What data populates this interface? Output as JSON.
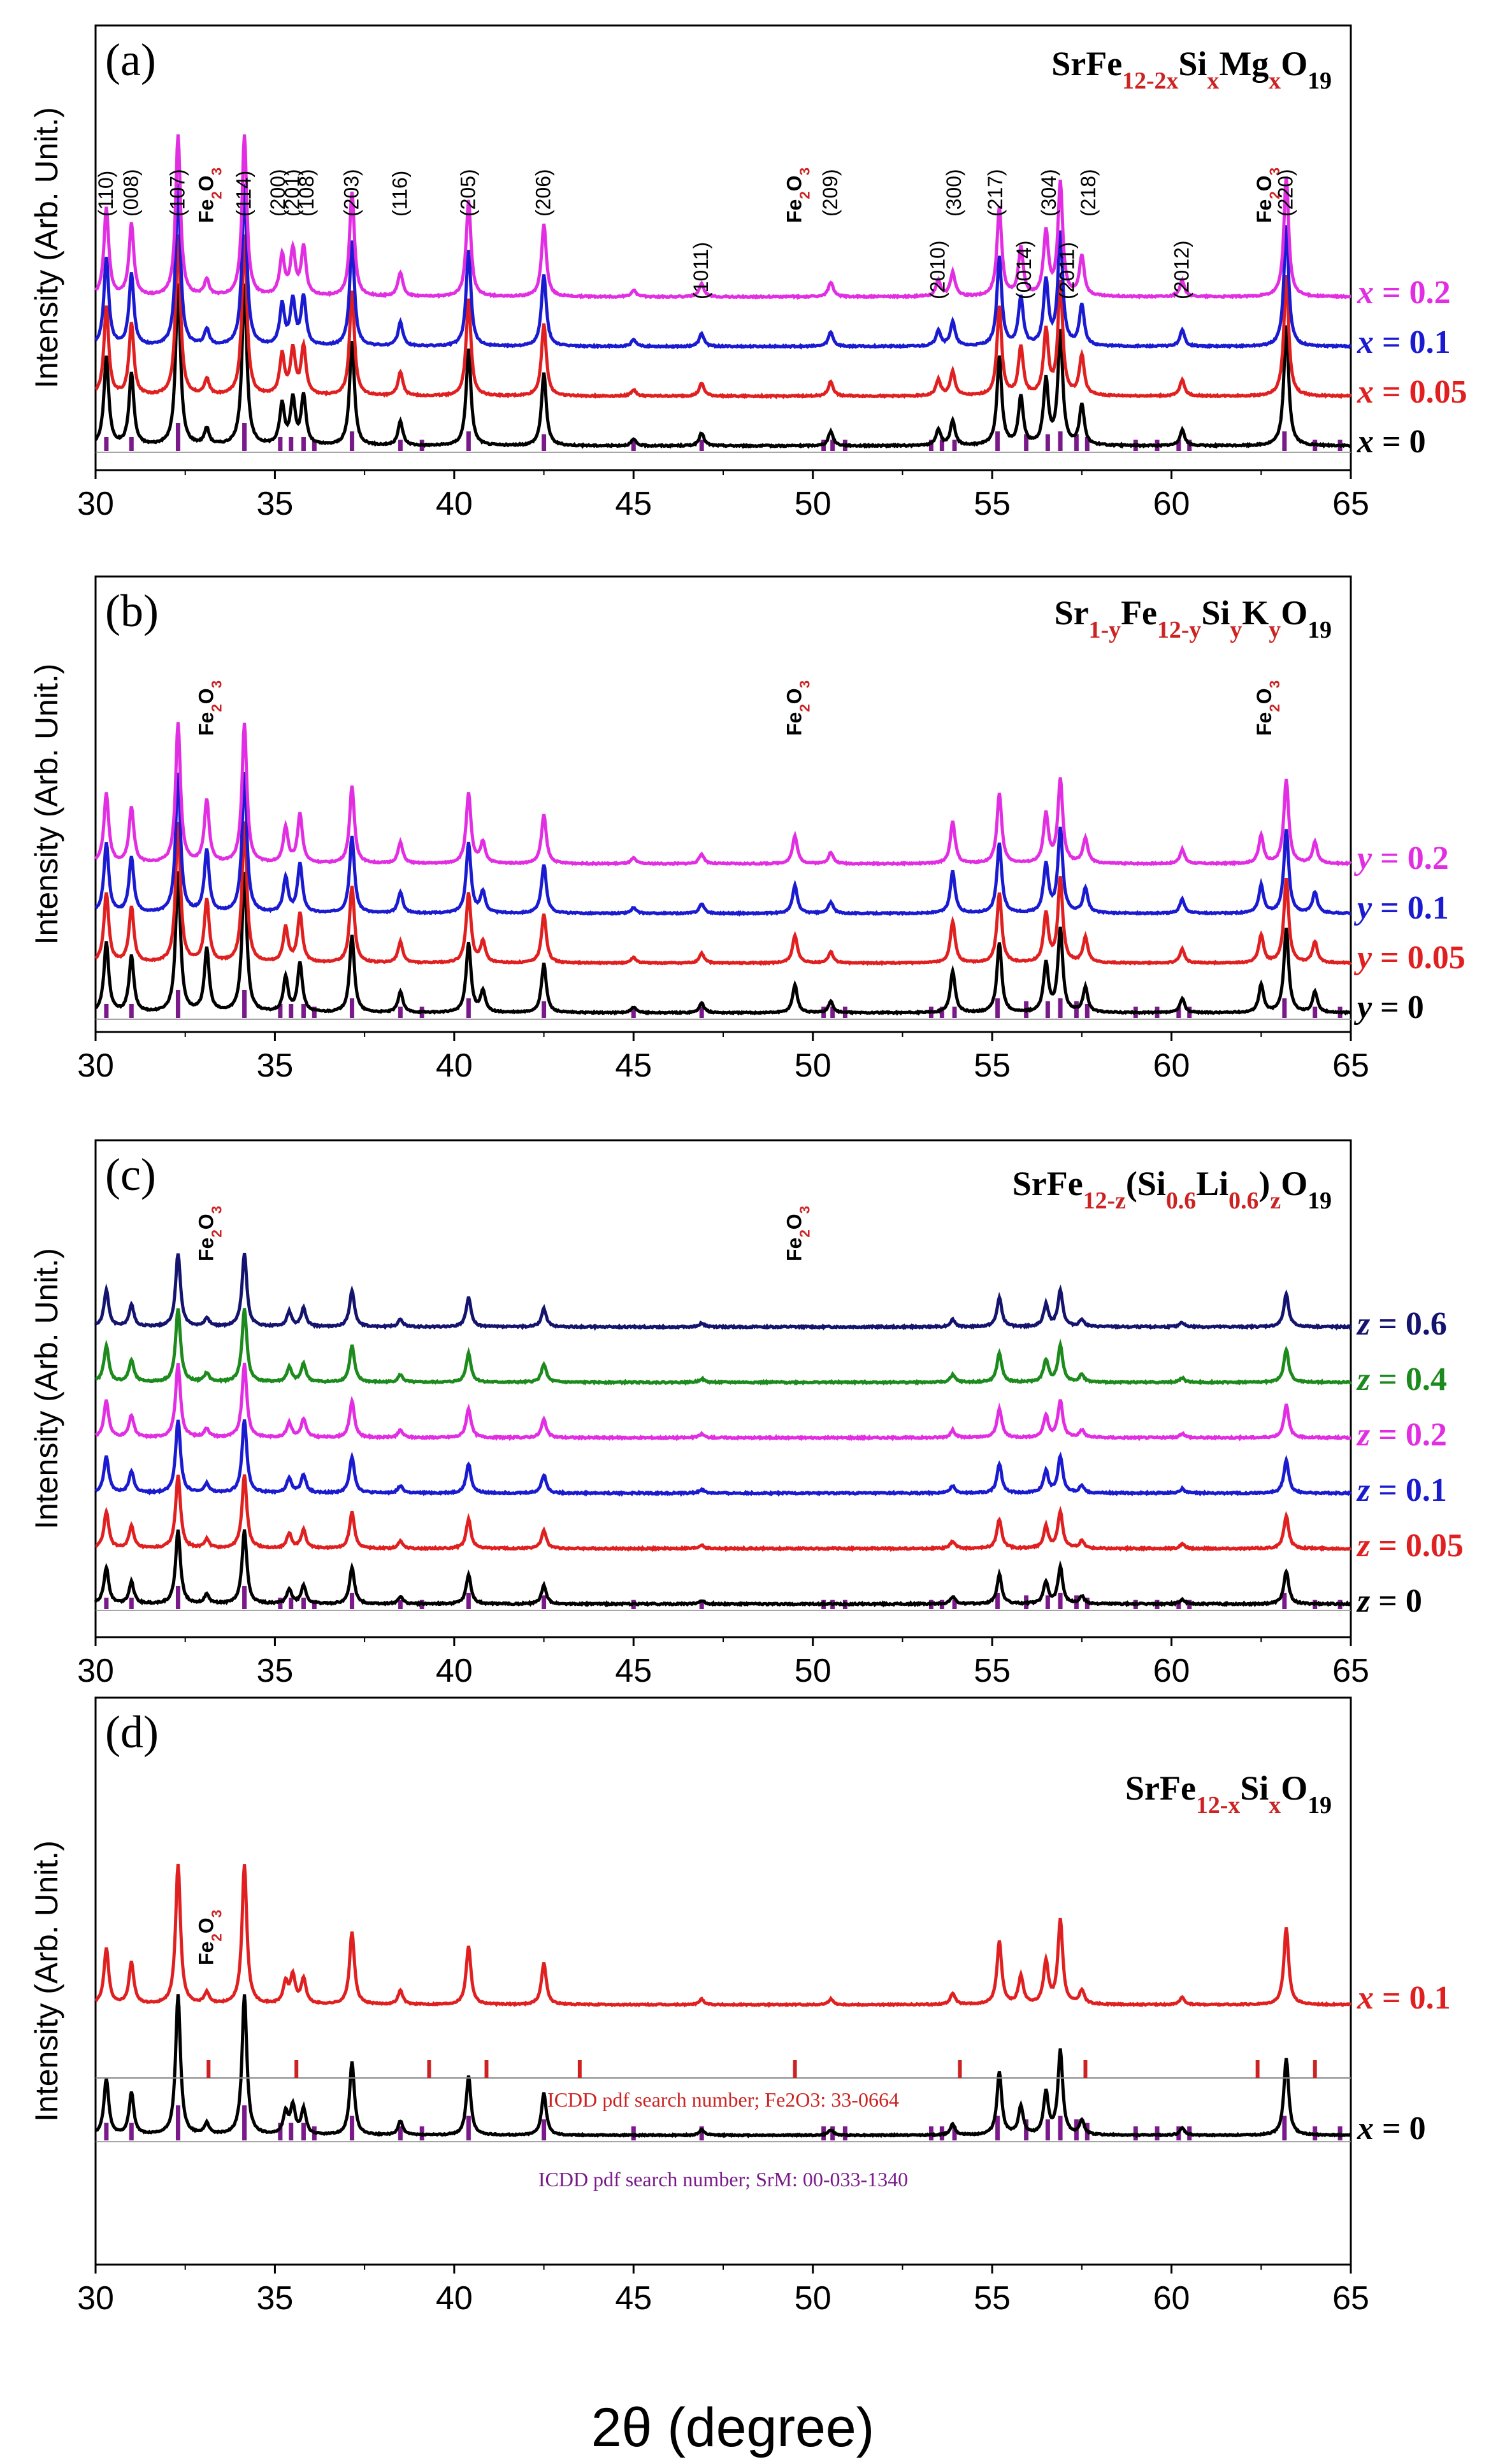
{
  "figure": {
    "xlabel": "2θ (degree)",
    "xlim": [
      30,
      65
    ],
    "xticks": [
      30,
      35,
      40,
      45,
      50,
      55,
      60,
      65
    ]
  },
  "colors": {
    "black": "#000000",
    "red": "#e02020",
    "blue": "#1a1ad0",
    "magenta": "#e22ee2",
    "navy": "#14146e",
    "green": "#1c8a1c",
    "purple": "#7a1a8a",
    "fe2o3": "#cc2222"
  },
  "chart_data": [
    {
      "panel": "a",
      "type": "line",
      "label": "(a)",
      "title": "SrFe12-2xSixMgxO19",
      "ylabel": "Intensity (Arb. Unit.)",
      "xlim": [
        30,
        65
      ],
      "series": [
        {
          "name": "x = 0",
          "var": "x",
          "val": "0",
          "color": "black"
        },
        {
          "name": "x = 0.05",
          "var": "x",
          "val": "0.05",
          "color": "red"
        },
        {
          "name": "x = 0.1",
          "var": "x",
          "val": "0.1",
          "color": "blue"
        },
        {
          "name": "x = 0.2",
          "var": "x",
          "val": "0.2",
          "color": "magenta"
        }
      ],
      "peaks": [
        {
          "x": 30.3,
          "h": 0.55
        },
        {
          "x": 31.0,
          "h": 0.45
        },
        {
          "x": 32.3,
          "h": 1.0
        },
        {
          "x": 33.1,
          "h": 0.1
        },
        {
          "x": 34.15,
          "h": 1.0
        },
        {
          "x": 35.2,
          "h": 0.25
        },
        {
          "x": 35.5,
          "h": 0.28
        },
        {
          "x": 35.8,
          "h": 0.3
        },
        {
          "x": 37.15,
          "h": 0.65
        },
        {
          "x": 38.5,
          "h": 0.15
        },
        {
          "x": 40.4,
          "h": 0.6
        },
        {
          "x": 42.5,
          "h": 0.45
        },
        {
          "x": 45.0,
          "h": 0.04
        },
        {
          "x": 46.9,
          "h": 0.08
        },
        {
          "x": 50.5,
          "h": 0.09
        },
        {
          "x": 53.5,
          "h": 0.1
        },
        {
          "x": 53.9,
          "h": 0.15
        },
        {
          "x": 55.2,
          "h": 0.55
        },
        {
          "x": 55.8,
          "h": 0.3
        },
        {
          "x": 56.5,
          "h": 0.4
        },
        {
          "x": 56.9,
          "h": 0.7
        },
        {
          "x": 57.5,
          "h": 0.25
        },
        {
          "x": 60.3,
          "h": 0.1
        },
        {
          "x": 63.2,
          "h": 0.75
        }
      ],
      "miller": [
        {
          "x": 30.3,
          "t": "(110)"
        },
        {
          "x": 31.0,
          "t": "(008)"
        },
        {
          "x": 32.3,
          "t": "(107)"
        },
        {
          "x": 34.15,
          "t": "(114)"
        },
        {
          "x": 35.1,
          "t": "(200)"
        },
        {
          "x": 35.5,
          "t": "(201)"
        },
        {
          "x": 35.9,
          "t": "(108)"
        },
        {
          "x": 37.15,
          "t": "(203)"
        },
        {
          "x": 38.5,
          "t": "(116)"
        },
        {
          "x": 40.4,
          "t": "(205)"
        },
        {
          "x": 42.5,
          "t": "(206)"
        },
        {
          "x": 46.9,
          "t": "(1011)"
        },
        {
          "x": 50.5,
          "t": "(209)"
        },
        {
          "x": 53.5,
          "t": "(2010)"
        },
        {
          "x": 53.95,
          "t": "(300)"
        },
        {
          "x": 55.1,
          "t": "(217)"
        },
        {
          "x": 55.9,
          "t": "(0014)"
        },
        {
          "x": 56.6,
          "t": "(304)"
        },
        {
          "x": 57.1,
          "t": "(2011)"
        },
        {
          "x": 57.7,
          "t": "(218)"
        },
        {
          "x": 60.3,
          "t": "(2012)"
        },
        {
          "x": 63.2,
          "t": "(220)"
        }
      ],
      "fe2o3": [
        {
          "x": 33.1
        },
        {
          "x": 49.5
        },
        {
          "x": 62.6
        }
      ]
    },
    {
      "panel": "b",
      "type": "line",
      "label": "(b)",
      "title": "Sr1-yFe12-ySiyKyO19",
      "ylabel": "Intensity (Arb. Unit.)",
      "xlim": [
        30,
        65
      ],
      "series": [
        {
          "name": "y = 0",
          "var": "y",
          "val": "0",
          "color": "black"
        },
        {
          "name": "y = 0.05",
          "var": "y",
          "val": "0.05",
          "color": "red"
        },
        {
          "name": "y = 0.1",
          "var": "y",
          "val": "0.1",
          "color": "blue"
        },
        {
          "name": "y = 0.2",
          "var": "y",
          "val": "0.2",
          "color": "magenta"
        }
      ],
      "peaks": [
        {
          "x": 30.3,
          "h": 0.5
        },
        {
          "x": 31.0,
          "h": 0.4
        },
        {
          "x": 32.3,
          "h": 1.0
        },
        {
          "x": 33.1,
          "h": 0.45
        },
        {
          "x": 34.15,
          "h": 1.0
        },
        {
          "x": 35.3,
          "h": 0.25
        },
        {
          "x": 35.7,
          "h": 0.35
        },
        {
          "x": 37.15,
          "h": 0.55
        },
        {
          "x": 38.5,
          "h": 0.15
        },
        {
          "x": 40.4,
          "h": 0.5
        },
        {
          "x": 40.8,
          "h": 0.15
        },
        {
          "x": 42.5,
          "h": 0.35
        },
        {
          "x": 45.0,
          "h": 0.04
        },
        {
          "x": 46.9,
          "h": 0.07
        },
        {
          "x": 49.5,
          "h": 0.2
        },
        {
          "x": 50.5,
          "h": 0.08
        },
        {
          "x": 53.9,
          "h": 0.3
        },
        {
          "x": 55.2,
          "h": 0.5
        },
        {
          "x": 56.5,
          "h": 0.35
        },
        {
          "x": 56.9,
          "h": 0.6
        },
        {
          "x": 57.6,
          "h": 0.18
        },
        {
          "x": 60.3,
          "h": 0.1
        },
        {
          "x": 62.5,
          "h": 0.2
        },
        {
          "x": 63.2,
          "h": 0.6
        },
        {
          "x": 64.0,
          "h": 0.15
        }
      ],
      "fe2o3": [
        {
          "x": 33.1
        },
        {
          "x": 49.5
        },
        {
          "x": 62.6
        }
      ]
    },
    {
      "panel": "c",
      "type": "line",
      "label": "(c)",
      "title": "SrFe12-z(Si0.6Li0.6)zO19",
      "ylabel": "Intensity (Arb. Unit.)",
      "xlim": [
        30,
        65
      ],
      "series": [
        {
          "name": "z = 0",
          "var": "z",
          "val": "0",
          "color": "black"
        },
        {
          "name": "z = 0.05",
          "var": "z",
          "val": "0.05",
          "color": "red"
        },
        {
          "name": "z = 0.1",
          "var": "z",
          "val": "0.1",
          "color": "blue"
        },
        {
          "name": "z = 0.2",
          "var": "z",
          "val": "0.2",
          "color": "magenta"
        },
        {
          "name": "z = 0.4",
          "var": "z",
          "val": "0.4",
          "color": "green"
        },
        {
          "name": "z = 0.6",
          "var": "z",
          "val": "0.6",
          "color": "navy"
        }
      ],
      "peaks": [
        {
          "x": 30.3,
          "h": 0.5
        },
        {
          "x": 31.0,
          "h": 0.3
        },
        {
          "x": 32.3,
          "h": 1.0
        },
        {
          "x": 33.1,
          "h": 0.12
        },
        {
          "x": 34.15,
          "h": 1.0
        },
        {
          "x": 35.4,
          "h": 0.2
        },
        {
          "x": 35.8,
          "h": 0.25
        },
        {
          "x": 37.15,
          "h": 0.5
        },
        {
          "x": 38.5,
          "h": 0.1
        },
        {
          "x": 40.4,
          "h": 0.4
        },
        {
          "x": 42.5,
          "h": 0.25
        },
        {
          "x": 46.9,
          "h": 0.05
        },
        {
          "x": 53.9,
          "h": 0.1
        },
        {
          "x": 55.2,
          "h": 0.4
        },
        {
          "x": 56.5,
          "h": 0.3
        },
        {
          "x": 56.9,
          "h": 0.5
        },
        {
          "x": 57.5,
          "h": 0.1
        },
        {
          "x": 60.3,
          "h": 0.06
        },
        {
          "x": 63.2,
          "h": 0.45
        }
      ],
      "fe2o3": [
        {
          "x": 33.1
        },
        {
          "x": 49.5
        }
      ]
    },
    {
      "panel": "d",
      "type": "line",
      "label": "(d)",
      "title": "SrFe12-xSixO19",
      "ylabel": "Intensity (Arb. Unit.)",
      "xlim": [
        30,
        65
      ],
      "series": [
        {
          "name": "x = 0",
          "var": "x",
          "val": "0",
          "color": "black"
        },
        {
          "name": "x = 0.1",
          "var": "x",
          "val": "0.1",
          "color": "red"
        }
      ],
      "peaks": [
        {
          "x": 30.3,
          "h": 0.4
        },
        {
          "x": 31.0,
          "h": 0.3
        },
        {
          "x": 32.3,
          "h": 1.0
        },
        {
          "x": 33.1,
          "h": 0.08
        },
        {
          "x": 34.15,
          "h": 1.0
        },
        {
          "x": 35.3,
          "h": 0.15
        },
        {
          "x": 35.5,
          "h": 0.2
        },
        {
          "x": 35.8,
          "h": 0.18
        },
        {
          "x": 37.15,
          "h": 0.52
        },
        {
          "x": 38.5,
          "h": 0.1
        },
        {
          "x": 40.4,
          "h": 0.42
        },
        {
          "x": 42.5,
          "h": 0.3
        },
        {
          "x": 46.9,
          "h": 0.04
        },
        {
          "x": 50.5,
          "h": 0.04
        },
        {
          "x": 53.9,
          "h": 0.08
        },
        {
          "x": 55.2,
          "h": 0.45
        },
        {
          "x": 55.8,
          "h": 0.2
        },
        {
          "x": 56.5,
          "h": 0.3
        },
        {
          "x": 56.9,
          "h": 0.6
        },
        {
          "x": 57.5,
          "h": 0.1
        },
        {
          "x": 60.3,
          "h": 0.05
        },
        {
          "x": 63.2,
          "h": 0.55
        }
      ],
      "fe2o3": [
        {
          "x": 33.1
        }
      ],
      "ref_fe2o3_text": "ICDD pdf search number; Fe2O3: 33-0664",
      "ref_srm_text": "ICDD pdf search number; SrM: 00-033-1340",
      "ref_fe2o3_lines": [
        33.15,
        35.6,
        39.3,
        40.9,
        43.5,
        49.5,
        54.1,
        57.6,
        62.4,
        64.0
      ]
    }
  ],
  "srm_reference_lines": [
    {
      "x": 30.3,
      "h": 0.5
    },
    {
      "x": 31.0,
      "h": 0.5
    },
    {
      "x": 32.3,
      "h": 1.0
    },
    {
      "x": 34.15,
      "h": 1.0
    },
    {
      "x": 35.15,
      "h": 0.5
    },
    {
      "x": 35.45,
      "h": 0.5
    },
    {
      "x": 35.8,
      "h": 0.5
    },
    {
      "x": 36.1,
      "h": 0.4
    },
    {
      "x": 37.15,
      "h": 0.7
    },
    {
      "x": 38.5,
      "h": 0.4
    },
    {
      "x": 39.1,
      "h": 0.4
    },
    {
      "x": 40.4,
      "h": 0.7
    },
    {
      "x": 42.5,
      "h": 0.6
    },
    {
      "x": 45.0,
      "h": 0.4
    },
    {
      "x": 46.9,
      "h": 0.4
    },
    {
      "x": 50.3,
      "h": 0.4
    },
    {
      "x": 50.55,
      "h": 0.4
    },
    {
      "x": 50.9,
      "h": 0.4
    },
    {
      "x": 53.3,
      "h": 0.4
    },
    {
      "x": 53.6,
      "h": 0.4
    },
    {
      "x": 53.95,
      "h": 0.4
    },
    {
      "x": 55.15,
      "h": 0.7
    },
    {
      "x": 55.95,
      "h": 0.6
    },
    {
      "x": 56.55,
      "h": 0.6
    },
    {
      "x": 56.9,
      "h": 0.7
    },
    {
      "x": 57.35,
      "h": 0.6
    },
    {
      "x": 57.65,
      "h": 0.5
    },
    {
      "x": 59.0,
      "h": 0.4
    },
    {
      "x": 59.6,
      "h": 0.4
    },
    {
      "x": 60.2,
      "h": 0.4
    },
    {
      "x": 60.5,
      "h": 0.4
    },
    {
      "x": 63.15,
      "h": 0.7
    },
    {
      "x": 64.0,
      "h": 0.4
    },
    {
      "x": 64.7,
      "h": 0.4
    }
  ]
}
